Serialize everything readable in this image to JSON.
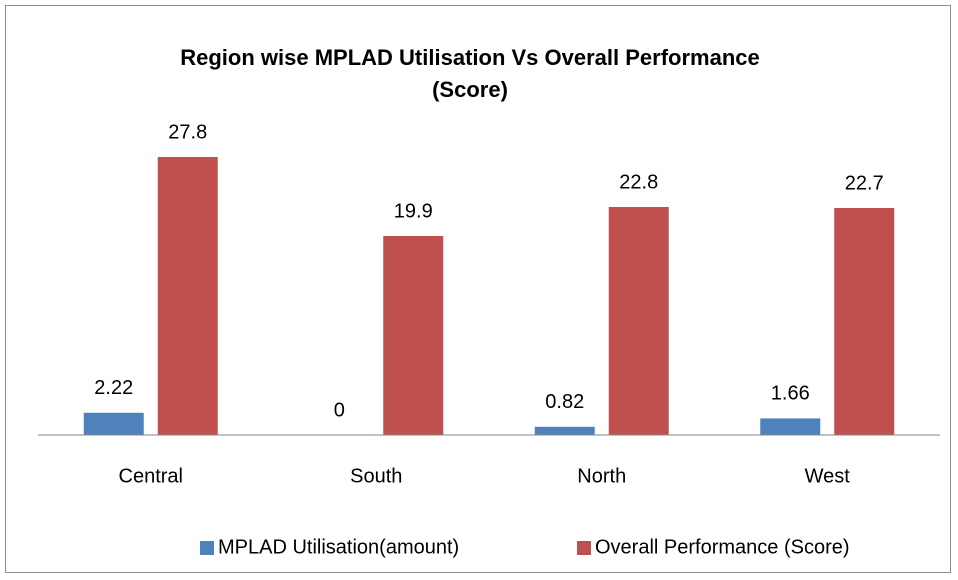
{
  "chart_data": {
    "type": "bar",
    "title": "Region wise MPLAD Utilisation Vs Overall Performance (Score)",
    "categories": [
      "Central",
      "South",
      "North",
      "West"
    ],
    "series": [
      {
        "name": "MPLAD Utilisation(amount)",
        "color": "#4f81bd",
        "values": [
          2.22,
          0,
          0.82,
          1.66
        ]
      },
      {
        "name": "Overall Performance (Score)",
        "color": "#c0504d",
        "values": [
          27.8,
          19.9,
          22.8,
          22.7
        ]
      }
    ],
    "ylim": [
      0,
      30
    ],
    "legend": "bottom"
  }
}
